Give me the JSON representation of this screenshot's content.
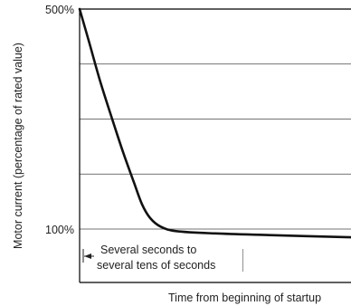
{
  "chart_data": {
    "type": "line",
    "title": "",
    "xlabel": "Time from beginning of startup",
    "ylabel": "Motor current (percentage of rated value)",
    "y_ticks": [
      {
        "value": 500,
        "label": "500%"
      },
      {
        "value": 100,
        "label": "100%"
      }
    ],
    "ylim": [
      0,
      500
    ],
    "gridlines_y": [
      400,
      300,
      200,
      100
    ],
    "grid": "horizontal",
    "series": [
      {
        "values": [
          {
            "t": 0.0,
            "y": 500
          },
          {
            "t": 0.035,
            "y": 440
          },
          {
            "t": 0.075,
            "y": 370
          },
          {
            "t": 0.12,
            "y": 300
          },
          {
            "t": 0.16,
            "y": 240
          },
          {
            "t": 0.2,
            "y": 185
          },
          {
            "t": 0.23,
            "y": 145
          },
          {
            "t": 0.26,
            "y": 120
          },
          {
            "t": 0.3,
            "y": 104
          },
          {
            "t": 0.36,
            "y": 96
          },
          {
            "t": 0.5,
            "y": 92
          },
          {
            "t": 0.7,
            "y": 89
          },
          {
            "t": 1.0,
            "y": 85
          }
        ]
      }
    ],
    "annotation": {
      "lines": [
        "Several seconds to",
        "several tens of seconds"
      ],
      "t_end": 0.6
    }
  }
}
